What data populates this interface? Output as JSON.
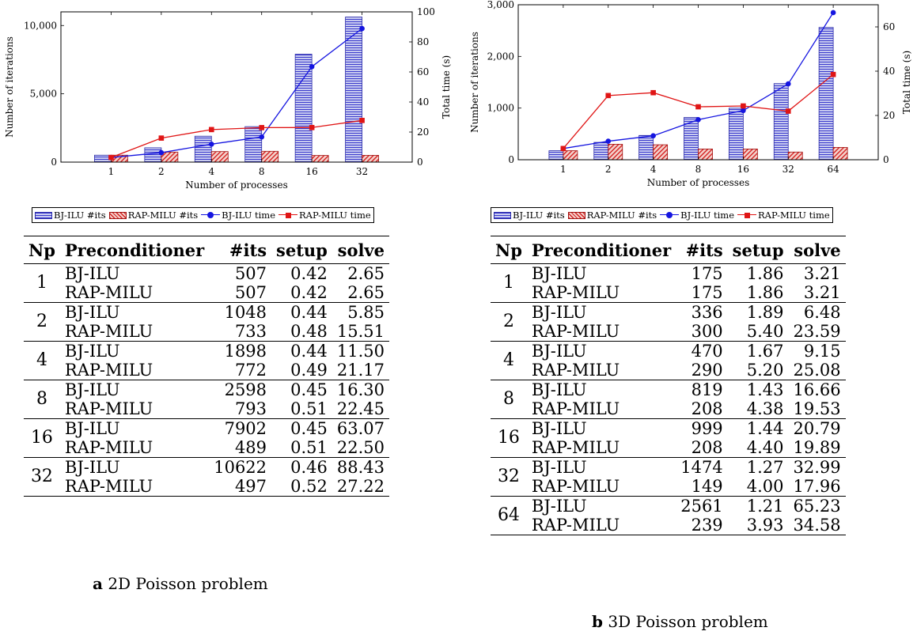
{
  "chart_data": [
    {
      "type": "bar",
      "title": "",
      "xlabel": "Number of processes",
      "ylabel": "Number of iterations",
      "y2label": "Total time (s)",
      "categories": [
        "1",
        "2",
        "4",
        "8",
        "16",
        "32"
      ],
      "ylim": [
        0,
        11000
      ],
      "y2lim": [
        0,
        100
      ],
      "yticks": [
        0,
        5000,
        10000
      ],
      "ytick_labels": [
        "0",
        "5,000",
        "10,000"
      ],
      "y2ticks": [
        0,
        20,
        40,
        60,
        80,
        100
      ],
      "y2tick_labels": [
        "0",
        "20",
        "40",
        "60",
        "80",
        "100"
      ],
      "legend": "below",
      "grid": false,
      "series": [
        {
          "name": "BJ-ILU #its",
          "kind": "bar",
          "axis": "left",
          "color": "#3a3acc",
          "values": [
            507,
            1048,
            1898,
            2598,
            7902,
            10622
          ]
        },
        {
          "name": "RAP-MILU #its",
          "kind": "bar",
          "axis": "left",
          "color": "#d42020",
          "values": [
            507,
            733,
            772,
            793,
            489,
            497
          ]
        },
        {
          "name": "BJ-ILU time",
          "kind": "line",
          "axis": "right",
          "color": "#1515e0",
          "values": [
            3.07,
            6.29,
            11.94,
            16.75,
            63.52,
            88.89
          ]
        },
        {
          "name": "RAP-MILU time",
          "kind": "line",
          "axis": "right",
          "color": "#e01515",
          "values": [
            3.07,
            15.99,
            21.66,
            22.96,
            23.01,
            27.74
          ]
        }
      ]
    },
    {
      "type": "bar",
      "title": "",
      "xlabel": "Number of processes",
      "ylabel": "Number of iterations",
      "y2label": "Total time (s)",
      "categories": [
        "1",
        "2",
        "4",
        "8",
        "16",
        "32",
        "64"
      ],
      "ylim": [
        0,
        3000
      ],
      "y2lim": [
        0,
        70
      ],
      "yticks": [
        0,
        1000,
        2000,
        3000
      ],
      "ytick_labels": [
        "0",
        "1,000",
        "2,000",
        "3,000"
      ],
      "y2ticks": [
        0,
        20,
        40,
        60
      ],
      "y2tick_labels": [
        "0",
        "20",
        "40",
        "60"
      ],
      "legend": "below",
      "grid": false,
      "series": [
        {
          "name": "BJ-ILU #its",
          "kind": "bar",
          "axis": "left",
          "color": "#3a3acc",
          "values": [
            175,
            336,
            470,
            819,
            999,
            1474,
            2561
          ]
        },
        {
          "name": "RAP-MILU #its",
          "kind": "bar",
          "axis": "left",
          "color": "#d42020",
          "values": [
            175,
            300,
            290,
            208,
            208,
            149,
            239
          ]
        },
        {
          "name": "BJ-ILU time",
          "kind": "line",
          "axis": "right",
          "color": "#1515e0",
          "values": [
            5.07,
            8.37,
            10.82,
            18.09,
            22.23,
            34.26,
            66.44
          ]
        },
        {
          "name": "RAP-MILU time",
          "kind": "line",
          "axis": "right",
          "color": "#e01515",
          "values": [
            5.07,
            28.99,
            30.28,
            23.91,
            24.29,
            21.96,
            38.51
          ]
        }
      ]
    }
  ],
  "legend_labels": {
    "bj_its": "BJ-ILU #its",
    "rap_its": "RAP-MILU #its",
    "bj_time": "BJ-ILU time",
    "rap_time": "RAP-MILU time"
  },
  "tables": [
    {
      "headers": [
        "Np",
        "Preconditioner",
        "#its",
        "setup",
        "solve"
      ],
      "groups": [
        {
          "np": "1",
          "rows": [
            [
              "BJ-ILU",
              "507",
              "0.42",
              "2.65"
            ],
            [
              "RAP-MILU",
              "507",
              "0.42",
              "2.65"
            ]
          ]
        },
        {
          "np": "2",
          "rows": [
            [
              "BJ-ILU",
              "1048",
              "0.44",
              "5.85"
            ],
            [
              "RAP-MILU",
              "733",
              "0.48",
              "15.51"
            ]
          ]
        },
        {
          "np": "4",
          "rows": [
            [
              "BJ-ILU",
              "1898",
              "0.44",
              "11.50"
            ],
            [
              "RAP-MILU",
              "772",
              "0.49",
              "21.17"
            ]
          ]
        },
        {
          "np": "8",
          "rows": [
            [
              "BJ-ILU",
              "2598",
              "0.45",
              "16.30"
            ],
            [
              "RAP-MILU",
              "793",
              "0.51",
              "22.45"
            ]
          ]
        },
        {
          "np": "16",
          "rows": [
            [
              "BJ-ILU",
              "7902",
              "0.45",
              "63.07"
            ],
            [
              "RAP-MILU",
              "489",
              "0.51",
              "22.50"
            ]
          ]
        },
        {
          "np": "32",
          "rows": [
            [
              "BJ-ILU",
              "10622",
              "0.46",
              "88.43"
            ],
            [
              "RAP-MILU",
              "497",
              "0.52",
              "27.22"
            ]
          ]
        }
      ]
    },
    {
      "headers": [
        "Np",
        "Preconditioner",
        "#its",
        "setup",
        "solve"
      ],
      "groups": [
        {
          "np": "1",
          "rows": [
            [
              "BJ-ILU",
              "175",
              "1.86",
              "3.21"
            ],
            [
              "RAP-MILU",
              "175",
              "1.86",
              "3.21"
            ]
          ]
        },
        {
          "np": "2",
          "rows": [
            [
              "BJ-ILU",
              "336",
              "1.89",
              "6.48"
            ],
            [
              "RAP-MILU",
              "300",
              "5.40",
              "23.59"
            ]
          ]
        },
        {
          "np": "4",
          "rows": [
            [
              "BJ-ILU",
              "470",
              "1.67",
              "9.15"
            ],
            [
              "RAP-MILU",
              "290",
              "5.20",
              "25.08"
            ]
          ]
        },
        {
          "np": "8",
          "rows": [
            [
              "BJ-ILU",
              "819",
              "1.43",
              "16.66"
            ],
            [
              "RAP-MILU",
              "208",
              "4.38",
              "19.53"
            ]
          ]
        },
        {
          "np": "16",
          "rows": [
            [
              "BJ-ILU",
              "999",
              "1.44",
              "20.79"
            ],
            [
              "RAP-MILU",
              "208",
              "4.40",
              "19.89"
            ]
          ]
        },
        {
          "np": "32",
          "rows": [
            [
              "BJ-ILU",
              "1474",
              "1.27",
              "32.99"
            ],
            [
              "RAP-MILU",
              "149",
              "4.00",
              "17.96"
            ]
          ]
        },
        {
          "np": "64",
          "rows": [
            [
              "BJ-ILU",
              "2561",
              "1.21",
              "65.23"
            ],
            [
              "RAP-MILU",
              "239",
              "3.93",
              "34.58"
            ]
          ]
        }
      ]
    }
  ],
  "captions": [
    {
      "letter": "a",
      "text": "2D Poisson problem"
    },
    {
      "letter": "b",
      "text": "3D Poisson problem"
    }
  ]
}
